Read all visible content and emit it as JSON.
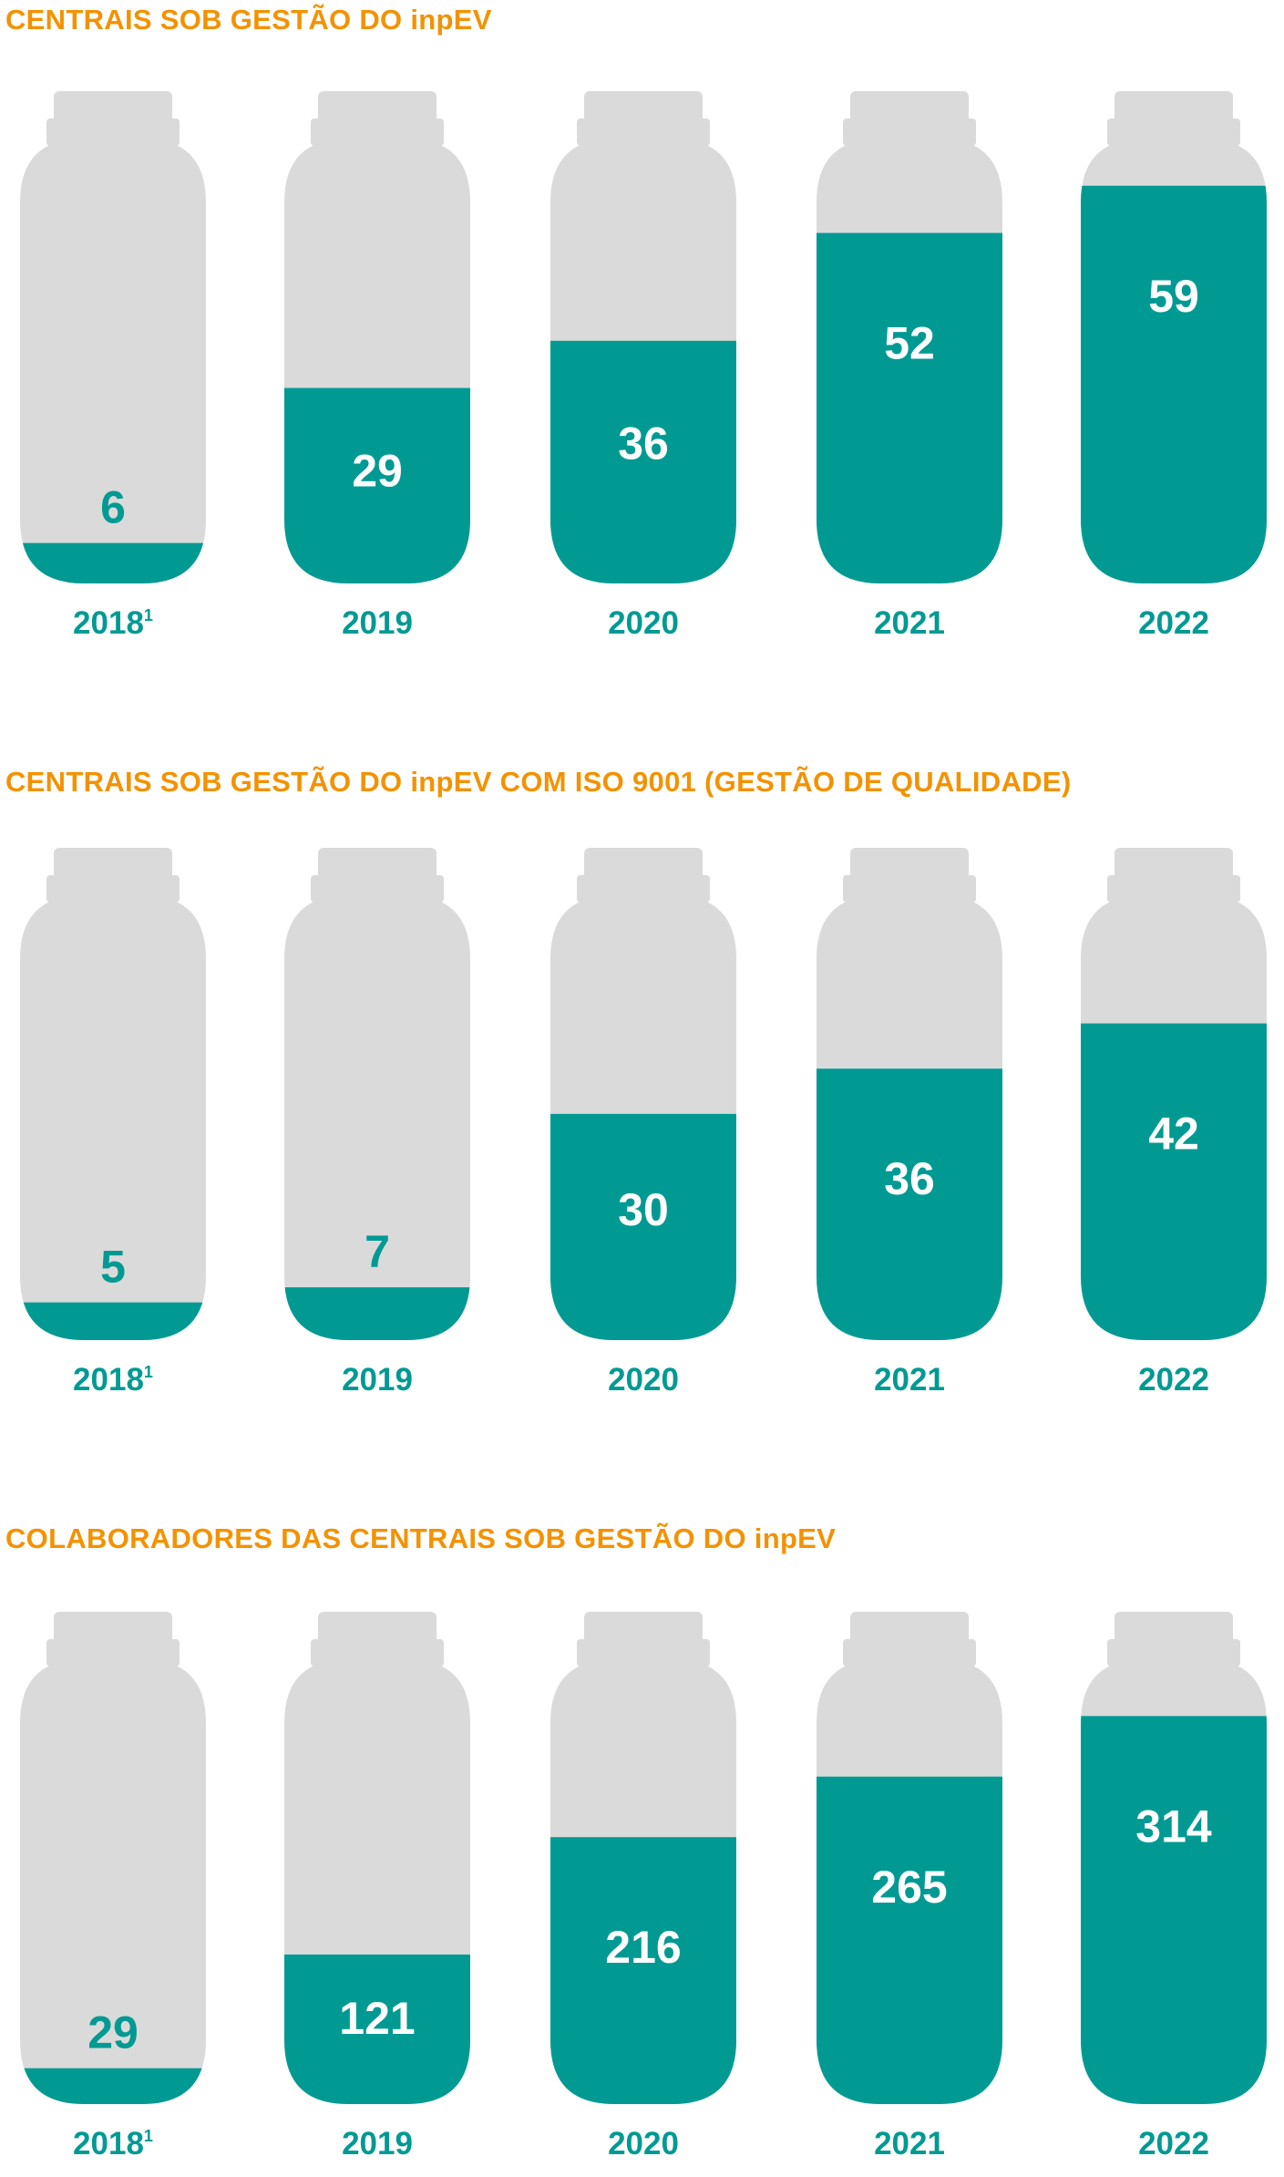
{
  "chart_data": [
    {
      "type": "bar",
      "title": "CENTRAIS SOB GESTÃO DO inpEV",
      "categories": [
        "2018",
        "2019",
        "2020",
        "2021",
        "2022"
      ],
      "category_notes": [
        "1",
        "",
        "",
        "",
        ""
      ],
      "values": [
        6,
        29,
        36,
        52,
        59
      ],
      "ylim": [
        0,
        66
      ]
    },
    {
      "type": "bar",
      "title": "CENTRAIS SOB GESTÃO DO inpEV COM ISO 9001 (GESTÃO DE QUALIDADE)",
      "categories": [
        "2018",
        "2019",
        "2020",
        "2021",
        "2022"
      ],
      "category_notes": [
        "1",
        "",
        "",
        "",
        ""
      ],
      "values": [
        5,
        7,
        30,
        36,
        42
      ],
      "ylim": [
        0,
        59
      ]
    },
    {
      "type": "bar",
      "title": "COLABORADORES DAS CENTRAIS SOB GESTÃO DO inpEV",
      "categories": [
        "2018",
        "2019",
        "2020",
        "2021",
        "2022"
      ],
      "category_notes": [
        "1",
        "",
        "",
        "",
        ""
      ],
      "values": [
        29,
        121,
        216,
        265,
        314
      ],
      "ylim": [
        0,
        360
      ]
    }
  ],
  "colors": {
    "title": "#f39200",
    "fill": "#009a93",
    "empty": "#dadada",
    "value_on_fill": "#ffffff",
    "value_on_empty": "#009a93",
    "year": "#009a93"
  }
}
